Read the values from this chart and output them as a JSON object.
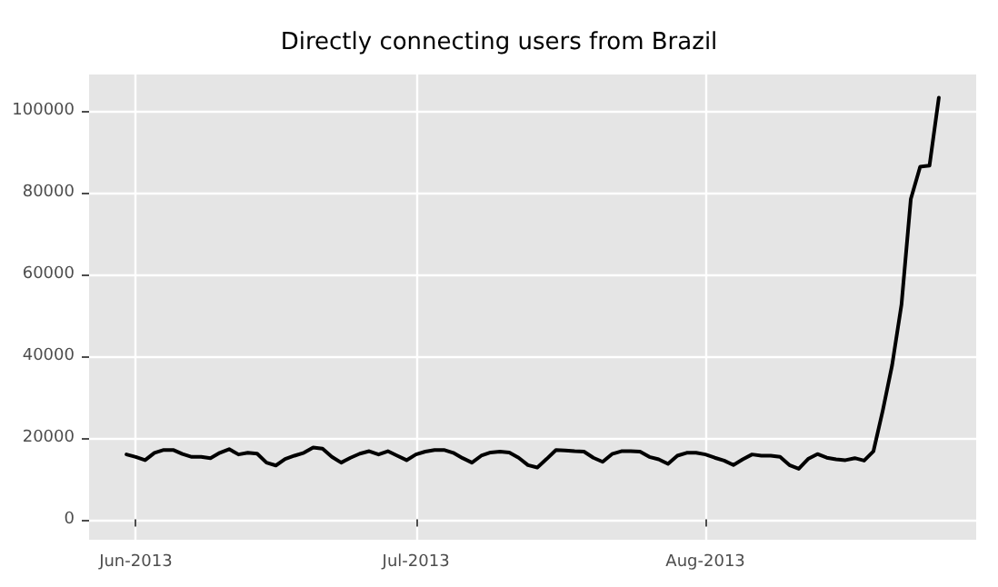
{
  "chart_data": {
    "type": "line",
    "title": "Directly connecting users from Brazil",
    "x": [
      "2013-05-31",
      "2013-06-01",
      "2013-06-02",
      "2013-06-03",
      "2013-06-04",
      "2013-06-05",
      "2013-06-06",
      "2013-06-07",
      "2013-06-08",
      "2013-06-09",
      "2013-06-10",
      "2013-06-11",
      "2013-06-12",
      "2013-06-13",
      "2013-06-14",
      "2013-06-15",
      "2013-06-16",
      "2013-06-17",
      "2013-06-18",
      "2013-06-19",
      "2013-06-20",
      "2013-06-21",
      "2013-06-22",
      "2013-06-23",
      "2013-06-24",
      "2013-06-25",
      "2013-06-26",
      "2013-06-27",
      "2013-06-28",
      "2013-06-29",
      "2013-06-30",
      "2013-07-01",
      "2013-07-02",
      "2013-07-03",
      "2013-07-04",
      "2013-07-05",
      "2013-07-06",
      "2013-07-07",
      "2013-07-08",
      "2013-07-09",
      "2013-07-10",
      "2013-07-11",
      "2013-07-12",
      "2013-07-13",
      "2013-07-14",
      "2013-07-15",
      "2013-07-16",
      "2013-07-17",
      "2013-07-18",
      "2013-07-19",
      "2013-07-20",
      "2013-07-21",
      "2013-07-22",
      "2013-07-23",
      "2013-07-24",
      "2013-07-25",
      "2013-07-26",
      "2013-07-27",
      "2013-07-28",
      "2013-07-29",
      "2013-07-30",
      "2013-07-31",
      "2013-08-01",
      "2013-08-02",
      "2013-08-03",
      "2013-08-04",
      "2013-08-05",
      "2013-08-06",
      "2013-08-07",
      "2013-08-08",
      "2013-08-09",
      "2013-08-10",
      "2013-08-11",
      "2013-08-12",
      "2013-08-13",
      "2013-08-14",
      "2013-08-15",
      "2013-08-16",
      "2013-08-17",
      "2013-08-18",
      "2013-08-19",
      "2013-08-20",
      "2013-08-21",
      "2013-08-22",
      "2013-08-23",
      "2013-08-24",
      "2013-08-25",
      "2013-08-26"
    ],
    "series": [
      {
        "color": "#000000",
        "values": [
          15900,
          15300,
          14500,
          16300,
          17000,
          17000,
          16000,
          15300,
          15300,
          15000,
          16300,
          17200,
          15900,
          16300,
          16100,
          13900,
          13200,
          14800,
          15600,
          16300,
          17600,
          17300,
          15300,
          13900,
          15100,
          16100,
          16700,
          15900,
          16700,
          15600,
          14500,
          15900,
          16600,
          17000,
          17000,
          16300,
          15000,
          13900,
          15600,
          16400,
          16600,
          16400,
          15100,
          13300,
          12700,
          14800,
          17000,
          16900,
          16700,
          16600,
          15100,
          14100,
          16000,
          16700,
          16700,
          16600,
          15300,
          14700,
          13600,
          15600,
          16300,
          16300,
          15900,
          15100,
          14400,
          13300,
          14700,
          15900,
          15600,
          15600,
          15300,
          13300,
          12400,
          14800,
          16000,
          15100,
          14700,
          14500,
          15000,
          14400,
          16700,
          26700,
          37800,
          52600,
          78500,
          86400,
          86700,
          103300
        ]
      }
    ],
    "xlim": [
      "2013-05-27",
      "2013-08-30"
    ],
    "xticks": [
      {
        "value": "2013-06-01",
        "label": "Jun-2013"
      },
      {
        "value": "2013-07-01",
        "label": "Jul-2013"
      },
      {
        "value": "2013-08-01",
        "label": "Aug-2013"
      }
    ],
    "ylim": [
      -5000,
      109000
    ],
    "yticks": [
      0,
      20000,
      40000,
      60000,
      80000,
      100000
    ],
    "grid": true,
    "marker": "none",
    "line_style": "solid"
  }
}
